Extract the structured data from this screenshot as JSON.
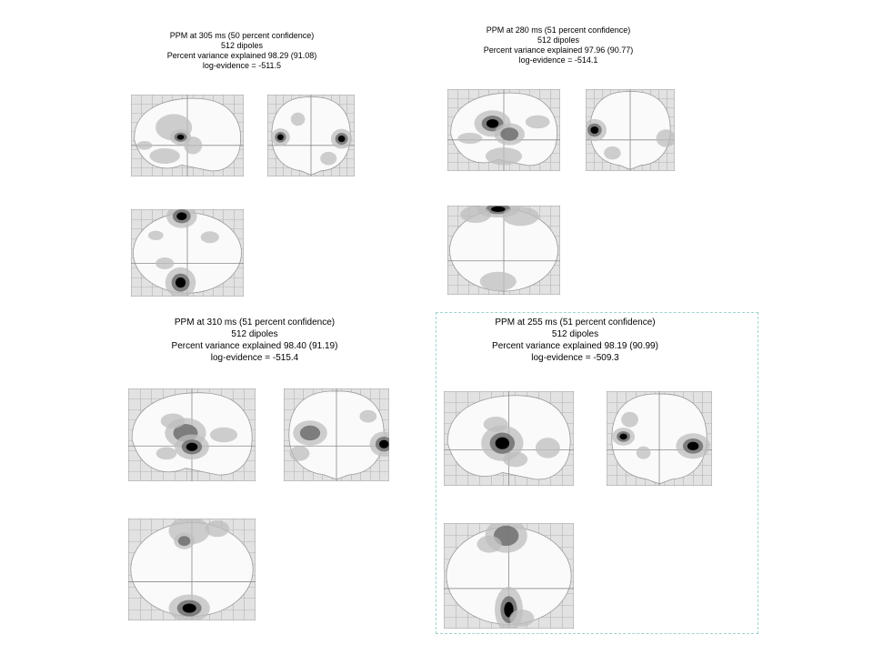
{
  "panels": [
    {
      "id": "p1",
      "title": "PPM at 305 ms (50 percent confidence)",
      "dipoles": "512 dipoles",
      "variance": "Percent variance explained 98.29 (91.08)",
      "evidence": "log-evidence = -511.5"
    },
    {
      "id": "p2",
      "title": "PPM at 280 ms (51 percent confidence)",
      "dipoles": "512 dipoles",
      "variance": "Percent variance explained 97.96 (90.77)",
      "evidence": "log-evidence = -514.1"
    },
    {
      "id": "p3",
      "title": "PPM at 310 ms (51 percent confidence)",
      "dipoles": "512 dipoles",
      "variance": "Percent variance explained 98.40 (91.19)",
      "evidence": "log-evidence = -515.4"
    },
    {
      "id": "p4",
      "title": "PPM at 255 ms (51 percent confidence)",
      "dipoles": "512 dipoles",
      "variance": "Percent variance explained 98.19 (90.99)",
      "evidence": "log-evidence = -509.3"
    }
  ],
  "colors": {
    "grid_bg": "#e2e2e2",
    "grid_line": "#b4b4b4",
    "brain": "#fafafa",
    "spot_light": "#bdbdbd",
    "spot_mid": "#6e6e6e",
    "spot_dark": "#000000",
    "selection": "#9fd4cf"
  }
}
